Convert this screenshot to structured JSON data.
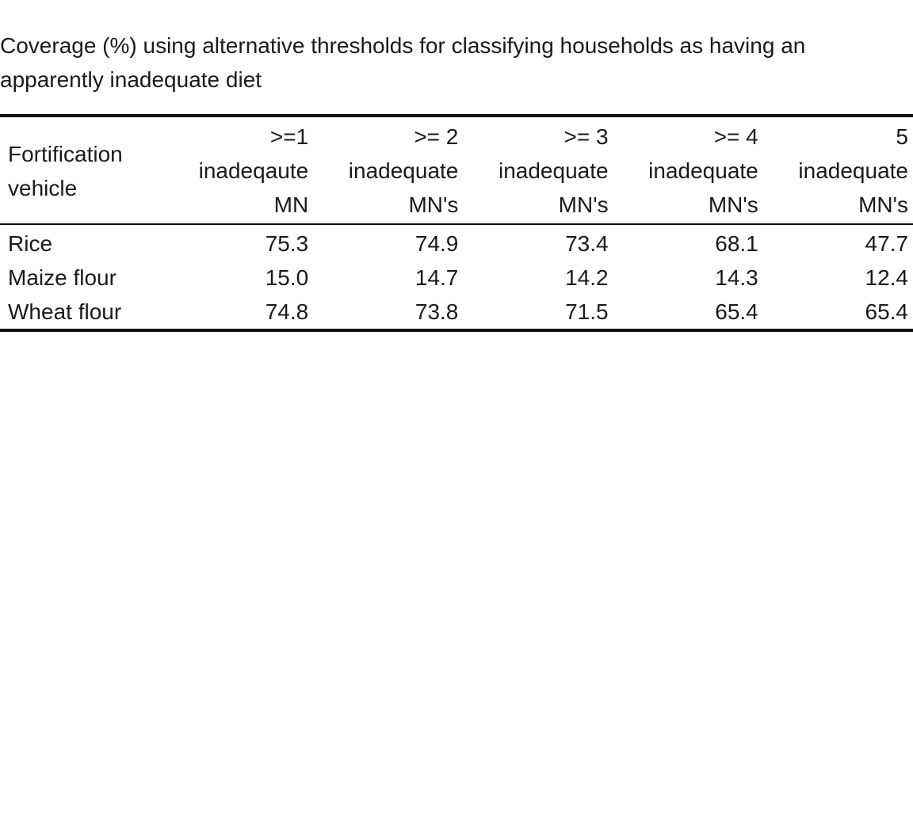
{
  "caption": "Coverage (%) using alternative thresholds for classifying households as having an apparently inadequate diet",
  "table": {
    "headers": [
      {
        "line1": "Fortification",
        "line2": "vehicle"
      },
      {
        "line1": ">=1",
        "line2": "inadeqaute",
        "line3": "MN"
      },
      {
        "line1": ">= 2",
        "line2": "inadequate",
        "line3": "MN's"
      },
      {
        "line1": ">= 3",
        "line2": "inadequate",
        "line3": "MN's"
      },
      {
        "line1": ">= 4",
        "line2": "inadequate",
        "line3": "MN's"
      },
      {
        "line1": "5",
        "line2": "inadequate",
        "line3": "MN's"
      }
    ],
    "rows": [
      {
        "label": "Rice",
        "values": [
          "75.3",
          "74.9",
          "73.4",
          "68.1",
          "47.7"
        ]
      },
      {
        "label": "Maize flour",
        "values": [
          "15.0",
          "14.7",
          "14.2",
          "14.3",
          "12.4"
        ]
      },
      {
        "label": "Wheat flour",
        "values": [
          "74.8",
          "73.8",
          "71.5",
          "65.4",
          "65.4"
        ]
      }
    ]
  }
}
